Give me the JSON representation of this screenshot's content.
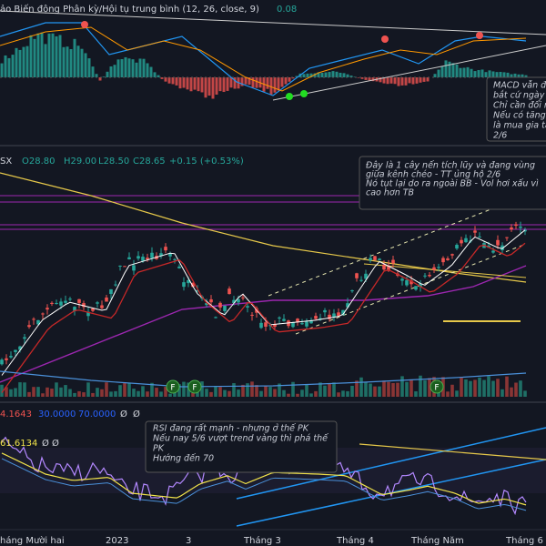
{
  "macd_header": {
    "title": "ảo Biến động Phân kỳ/Hội tụ trung bình (12, 26, close, 9)",
    "value": "0.08"
  },
  "macd_note": [
    "MACD vẫn đa",
    "bắt cứ ngày",
    "Chỉ cần đổi n",
    "Nếu có tăng",
    "là mua gia tă",
    "2/6"
  ],
  "price_header": {
    "symbol": "SX",
    "open": "O28.80",
    "high": "H29.00",
    "low": "L28.50",
    "close": "C28.65",
    "change": "+0.15 (+0.53%)"
  },
  "price_note": [
    "Đây là 1 cây nến tích lũy và đang vùng",
    "giữa kênh chéo - TT ủng hộ 2/6",
    "Nó tụt lại do ra ngoài BB - Vol hơi xấu vì",
    "cao hơn TB"
  ],
  "markers": [
    "F",
    "F",
    "F"
  ],
  "rsi_header": {
    "line1": [
      "4.1643",
      "30.0000",
      "70.0000",
      "Ø",
      "Ø"
    ],
    "line2": [
      "61.6134",
      "Ø Ø"
    ]
  },
  "rsi_note": [
    "RSI đang rất mạnh - nhưng ở thế PK",
    "Nếu nay 5/6 vượt trend vàng thì phá thế",
    "PK",
    "Hướng đến 70"
  ],
  "x_axis": [
    "háng Mười hai",
    "2023",
    "3",
    "Tháng 3",
    "Tháng 4",
    "Tháng Năm",
    "Tháng 6"
  ]
}
